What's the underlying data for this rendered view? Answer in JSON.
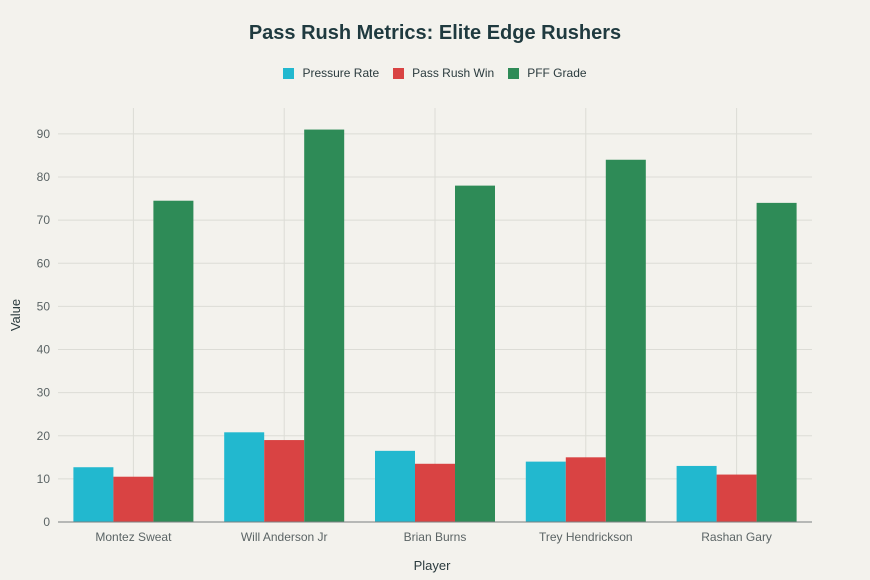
{
  "chart_data": {
    "type": "bar",
    "title": "Pass Rush Metrics: Elite Edge Rushers",
    "xlabel": "Player",
    "ylabel": "Value",
    "categories": [
      "Montez Sweat",
      "Will Anderson Jr",
      "Brian Burns",
      "Trey Hendrickson",
      "Rashan Gary"
    ],
    "series": [
      {
        "name": "Pressure Rate",
        "color": "#22b8cf",
        "values": [
          12.7,
          20.8,
          16.5,
          14.0,
          13.0
        ]
      },
      {
        "name": "Pass Rush Win",
        "color": "#d94343",
        "values": [
          10.5,
          19.0,
          13.5,
          15.0,
          11.0
        ]
      },
      {
        "name": "PFF Grade",
        "color": "#2e8b57",
        "values": [
          74.5,
          91.0,
          78.0,
          84.0,
          74.0
        ]
      }
    ],
    "ylim": [
      0,
      96
    ],
    "yticks": [
      0,
      10,
      20,
      30,
      40,
      50,
      60,
      70,
      80,
      90
    ],
    "grid": true,
    "legend_position": "top-center"
  }
}
